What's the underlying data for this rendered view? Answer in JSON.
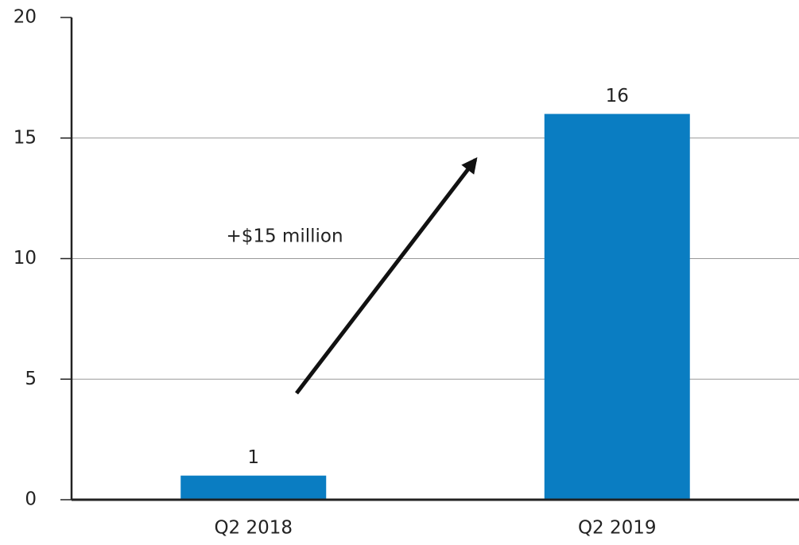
{
  "chart_data": {
    "type": "bar",
    "categories": [
      "Q2 2018",
      "Q2 2019"
    ],
    "values": [
      1,
      16
    ],
    "color": "#0a7dc2",
    "ylim": [
      0,
      20
    ],
    "yticks": [
      0,
      5,
      10,
      15,
      20
    ],
    "grid": true,
    "annotation": "+$15 million"
  }
}
